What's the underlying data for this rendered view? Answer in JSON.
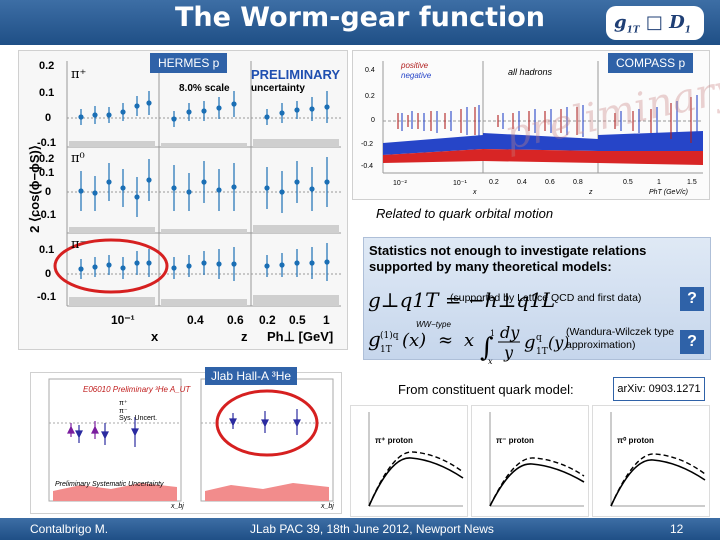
{
  "title": "The Worm-gear function",
  "logo": {
    "main": "g",
    "sub": "1T",
    "sup": "⊥",
    "box": "□",
    "d": "D",
    "dsub": "1"
  },
  "tags": {
    "hermes": "HERMES  p",
    "compass": "COMPASS  p",
    "jlab": "Jlab Hall-A  ³He"
  },
  "hermes": {
    "preliminary": "PRELIMINARY",
    "scale": "8.0% scale",
    "uncertainty": "uncertainty",
    "ylabel": "2 ⟨cos(ϕ−ϕS)⟩",
    "x_ticks": [
      "10⁻¹",
      "0.4",
      "0.6",
      "0.2",
      "0.5",
      "1"
    ],
    "x_labels": [
      "x",
      "z",
      "Ph⊥ [GeV]"
    ],
    "rows": [
      {
        "particle": "π⁺",
        "ticks": [
          "0.2",
          "0.1",
          "0",
          "-0.1"
        ]
      },
      {
        "particle": "π⁰",
        "ticks": [
          "0.2",
          "0.1",
          "0",
          "-0.1"
        ]
      },
      {
        "particle": "π⁻",
        "ticks": [
          "0.1",
          "0",
          "-0.1"
        ]
      }
    ]
  },
  "compass": {
    "legend_pos": "positive",
    "legend_neg": "negative",
    "all_hadrons": "all hadrons",
    "watermark1": "preliminary",
    "y_ticks": [
      "0.4",
      "0.2",
      "0",
      "-0.2",
      "-0.4"
    ],
    "x_ticks": [
      "10⁻²",
      "10⁻¹",
      "0.2",
      "0.4",
      "0.6",
      "0.8",
      "0.5",
      "1",
      "1.5"
    ],
    "x_labels": [
      "x",
      "z",
      "PhT (GeV/c)"
    ]
  },
  "related": "Related to quark orbital motion",
  "stats": {
    "title": "Statistics not enough to investigate relations supported by many theoretical models:",
    "eq1": "g⊥q1T = −h⊥q1L",
    "eq1_note": "(supported by Lattice QCD and first data)",
    "eq2_note": "(Wandura-Wilczek type approximation)",
    "eq2_label": "WW−type",
    "q": "?"
  },
  "constituent": "From constituent quark model:",
  "arxiv": "arXiv: 0903.1271",
  "jlab_plot": {
    "label": "E06010 Preliminary ³He A_UT",
    "legend": [
      "π⁺",
      "π⁻",
      "Sys. Uncert."
    ],
    "syst": "Preliminary Systematic Uncertainty",
    "x_label": "x_bj"
  },
  "mini_plots": [
    {
      "label": "π⁺ proton"
    },
    {
      "label": "π⁻ proton"
    },
    {
      "label": "π⁰ proton"
    }
  ],
  "footer": {
    "left": "Contalbrigo M.",
    "center": "JLab PAC 39, 18th June 2012, Newport News",
    "right": "12"
  }
}
